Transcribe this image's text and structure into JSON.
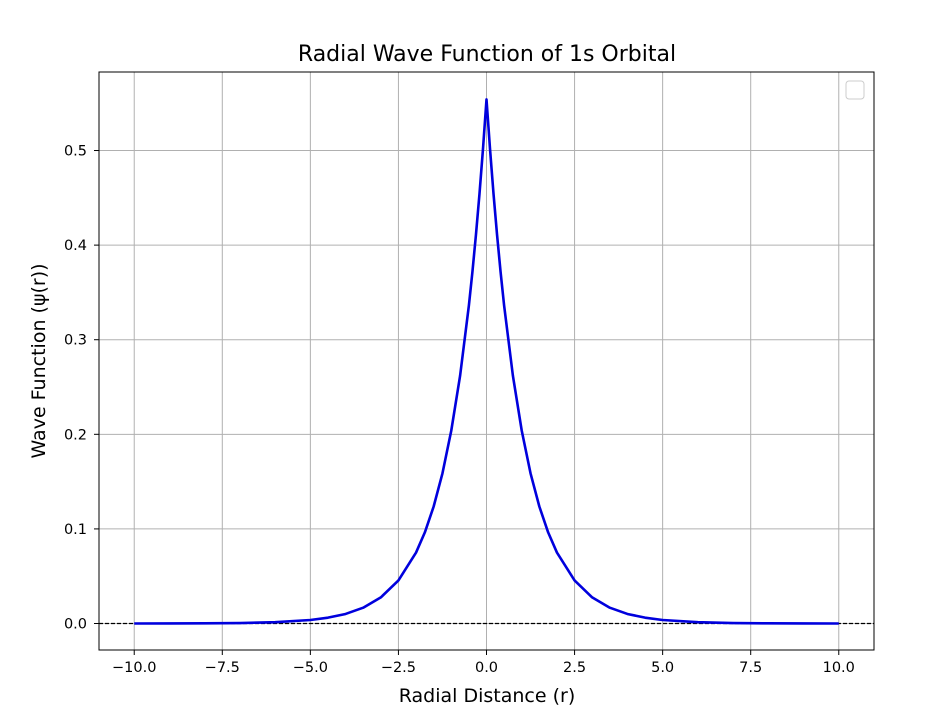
{
  "chart_data": {
    "type": "line",
    "title": "Radial Wave Function of 1s Orbital",
    "xlabel": "Radial Distance (r)",
    "ylabel": "Wave Function (ψ(r))",
    "xlim": [
      -11,
      11
    ],
    "ylim": [
      -0.028,
      0.583
    ],
    "xticks": [
      -10.0,
      -7.5,
      -5.0,
      -2.5,
      0.0,
      2.5,
      5.0,
      7.5,
      10.0
    ],
    "xtick_labels": [
      "−10.0",
      "−7.5",
      "−5.0",
      "−2.5",
      "0.0",
      "2.5",
      "5.0",
      "7.5",
      "10.0"
    ],
    "yticks": [
      0.0,
      0.1,
      0.2,
      0.3,
      0.4,
      0.5
    ],
    "ytick_labels": [
      "0.0",
      "0.1",
      "0.2",
      "0.3",
      "0.4",
      "0.5"
    ],
    "grid": true,
    "legend": "empty box, upper right",
    "reference_line": {
      "y": 0.0,
      "style": "dashed",
      "color": "#000000"
    },
    "series": [
      {
        "color": "#0000dd",
        "x": [
          -10.0,
          -9.0,
          -8.0,
          -7.0,
          -6.0,
          -5.0,
          -4.5,
          -4.0,
          -3.5,
          -3.0,
          -2.5,
          -2.0,
          -1.75,
          -1.5,
          -1.25,
          -1.0,
          -0.75,
          -0.5,
          -0.4,
          -0.3,
          -0.2,
          -0.1,
          0.0,
          0.1,
          0.2,
          0.3,
          0.4,
          0.5,
          0.75,
          1.0,
          1.25,
          1.5,
          1.75,
          2.0,
          2.5,
          3.0,
          3.5,
          4.0,
          4.5,
          5.0,
          6.0,
          7.0,
          8.0,
          9.0,
          10.0
        ],
        "y": [
          0.0,
          0.0001,
          0.0002,
          0.0005,
          0.0014,
          0.0037,
          0.0062,
          0.0101,
          0.0167,
          0.0276,
          0.0455,
          0.075,
          0.0963,
          0.1237,
          0.1588,
          0.2039,
          0.2618,
          0.3362,
          0.3716,
          0.4107,
          0.4538,
          0.5016,
          0.554,
          0.5016,
          0.4538,
          0.4107,
          0.3716,
          0.3362,
          0.2618,
          0.2039,
          0.1588,
          0.1237,
          0.0963,
          0.075,
          0.0455,
          0.0276,
          0.0167,
          0.0101,
          0.0062,
          0.0037,
          0.0014,
          0.0005,
          0.0002,
          0.0001,
          0.0
        ]
      }
    ]
  }
}
